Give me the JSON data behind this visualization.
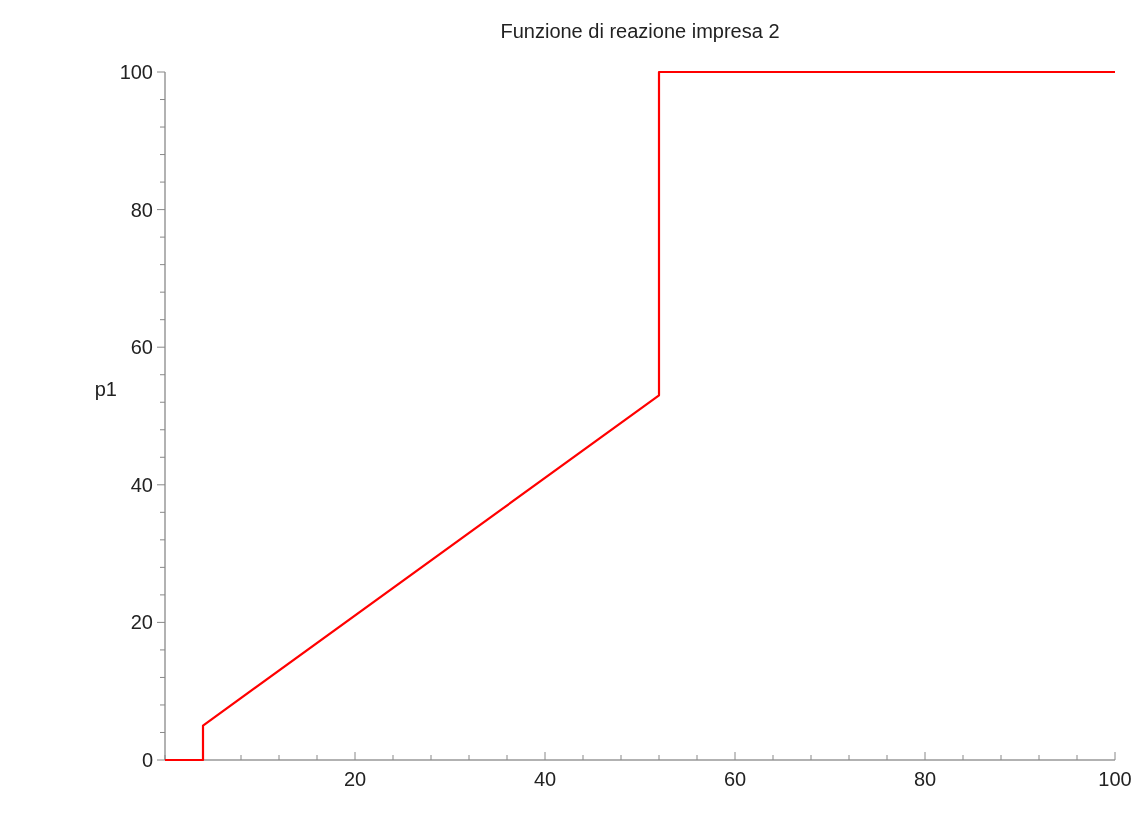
{
  "chart_data": {
    "type": "line",
    "title": "Funzione di reazione impresa 2",
    "ylabel": "p1",
    "x": [
      0,
      4,
      4,
      52,
      52,
      100
    ],
    "series": [
      {
        "color": "#ff0000",
        "values": [
          0,
          0,
          5,
          53,
          100,
          100
        ]
      }
    ],
    "xlim": [
      0,
      100
    ],
    "ylim": [
      0,
      100
    ],
    "xticks": [
      {
        "value": 0,
        "label": null
      },
      {
        "value": 4,
        "label": null
      },
      {
        "value": 8,
        "label": null
      },
      {
        "value": 12,
        "label": null
      },
      {
        "value": 16,
        "label": null
      },
      20,
      {
        "value": 24,
        "label": null
      },
      {
        "value": 28,
        "label": null
      },
      {
        "value": 32,
        "label": null
      },
      {
        "value": 36,
        "label": null
      },
      40,
      {
        "value": 44,
        "label": null
      },
      {
        "value": 48,
        "label": null
      },
      {
        "value": 52,
        "label": null
      },
      {
        "value": 56,
        "label": null
      },
      60,
      {
        "value": 64,
        "label": null
      },
      {
        "value": 68,
        "label": null
      },
      {
        "value": 72,
        "label": null
      },
      {
        "value": 76,
        "label": null
      },
      80,
      {
        "value": 84,
        "label": null
      },
      {
        "value": 88,
        "label": null
      },
      {
        "value": 92,
        "label": null
      },
      {
        "value": 96,
        "label": null
      },
      100
    ],
    "yticks": [
      0,
      {
        "value": 4,
        "label": null
      },
      {
        "value": 8,
        "label": null
      },
      {
        "value": 12,
        "label": null
      },
      {
        "value": 16,
        "label": null
      },
      20,
      {
        "value": 24,
        "label": null
      },
      {
        "value": 28,
        "label": null
      },
      {
        "value": 32,
        "label": null
      },
      {
        "value": 36,
        "label": null
      },
      40,
      {
        "value": 44,
        "label": null
      },
      {
        "value": 48,
        "label": null
      },
      {
        "value": 52,
        "label": null
      },
      {
        "value": 56,
        "label": null
      },
      60,
      {
        "value": 64,
        "label": null
      },
      {
        "value": 68,
        "label": null
      },
      {
        "value": 72,
        "label": null
      },
      {
        "value": 76,
        "label": null
      },
      80,
      {
        "value": 84,
        "label": null
      },
      {
        "value": 88,
        "label": null
      },
      {
        "value": 92,
        "label": null
      },
      {
        "value": 96,
        "label": null
      },
      100
    ],
    "grid": false,
    "marker": "none",
    "line_style": "solid"
  }
}
